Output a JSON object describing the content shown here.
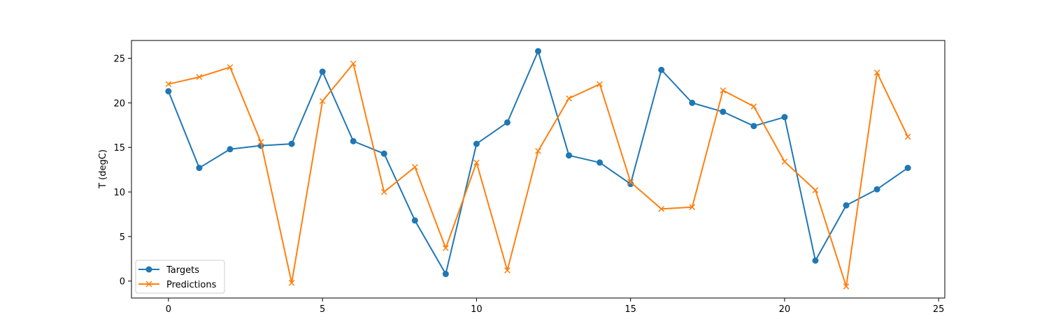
{
  "chart_data": {
    "type": "line",
    "title": "",
    "xlabel": "",
    "ylabel": "T (degC)",
    "xlim": [
      -1.2,
      25.2
    ],
    "ylim": [
      -1.9,
      27.0
    ],
    "xticks": [
      0,
      5,
      10,
      15,
      20,
      25
    ],
    "yticks": [
      0,
      5,
      10,
      15,
      20,
      25
    ],
    "grid": false,
    "legend_position": "lower-left",
    "x": [
      0,
      1,
      2,
      3,
      4,
      5,
      6,
      7,
      8,
      9,
      10,
      11,
      12,
      13,
      14,
      15,
      16,
      17,
      18,
      19,
      20,
      21,
      22,
      23,
      24
    ],
    "series": [
      {
        "name": "Targets",
        "color": "#1f77b4",
        "marker": "circle",
        "values": [
          21.3,
          12.7,
          14.8,
          15.2,
          15.4,
          23.5,
          15.7,
          14.3,
          6.8,
          0.8,
          15.4,
          17.8,
          25.8,
          14.1,
          13.3,
          10.9,
          23.7,
          20.0,
          19.0,
          17.4,
          18.4,
          2.3,
          8.5,
          10.3,
          12.7
        ]
      },
      {
        "name": "Predictions",
        "color": "#ff7f0e",
        "marker": "x",
        "values": [
          22.1,
          22.9,
          24.0,
          15.6,
          -0.2,
          20.2,
          24.4,
          10.0,
          12.8,
          3.7,
          13.3,
          1.2,
          14.6,
          20.5,
          22.1,
          11.1,
          8.1,
          8.3,
          21.4,
          19.6,
          13.4,
          10.2,
          -0.6,
          23.4,
          16.2
        ]
      }
    ]
  }
}
